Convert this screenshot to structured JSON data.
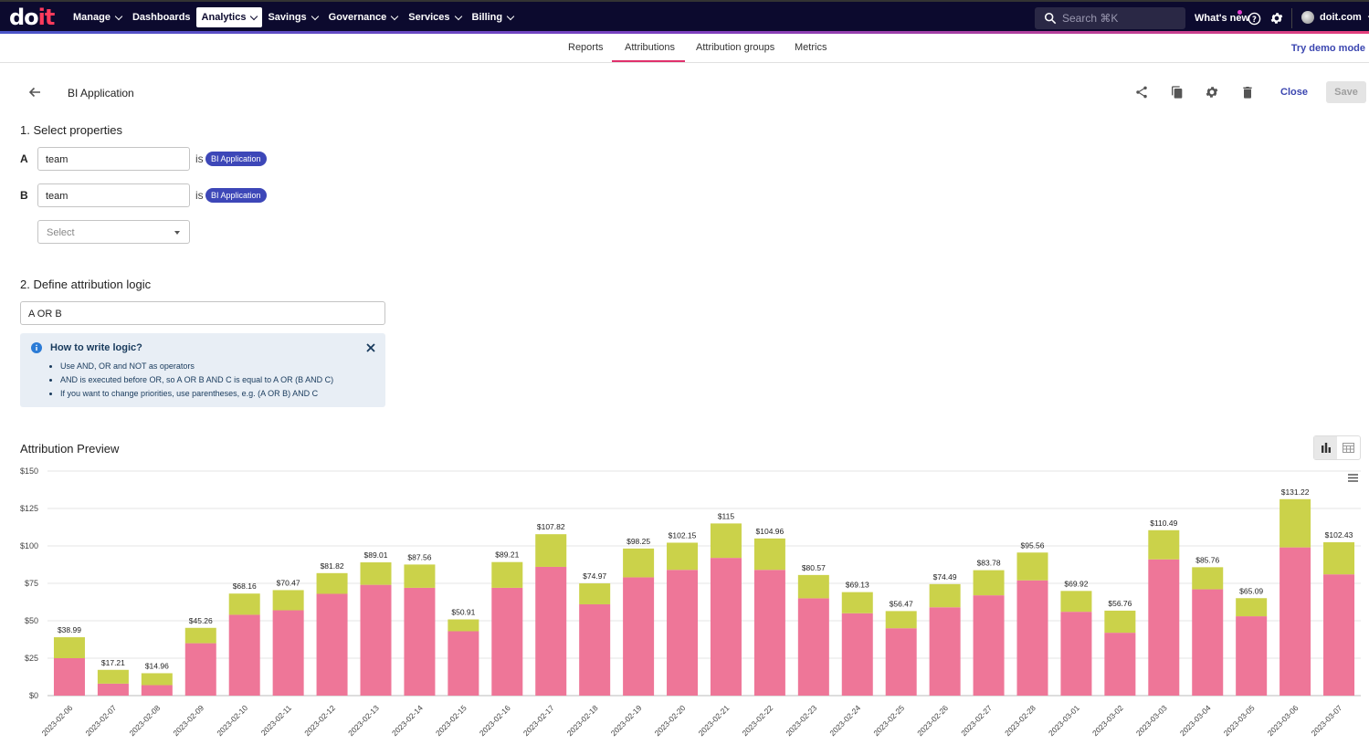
{
  "nav": {
    "logo_left": "do",
    "logo_right": "it",
    "items": [
      {
        "label": "Manage",
        "has_caret": true,
        "active": false
      },
      {
        "label": "Dashboards",
        "has_caret": false,
        "active": false
      },
      {
        "label": "Analytics",
        "has_caret": true,
        "active": true
      },
      {
        "label": "Savings",
        "has_caret": true,
        "active": false
      },
      {
        "label": "Governance",
        "has_caret": true,
        "active": false
      },
      {
        "label": "Services",
        "has_caret": true,
        "active": false
      },
      {
        "label": "Billing",
        "has_caret": true,
        "active": false
      }
    ],
    "search_placeholder": "Search ⌘K",
    "whats_new": "What's new",
    "account": "doit.com"
  },
  "subtabs": {
    "items": [
      "Reports",
      "Attributions",
      "Attribution groups",
      "Metrics"
    ],
    "active": "Attributions",
    "try_demo": "Try demo mode"
  },
  "header": {
    "title": "BI Application",
    "close_label": "Close",
    "save_label": "Save"
  },
  "section1": {
    "title": "1. Select properties",
    "rows": [
      {
        "letter": "A",
        "field": "team",
        "operator": "is",
        "chip": "BI Application"
      },
      {
        "letter": "B",
        "field": "team",
        "operator": "is",
        "chip": "BI Application"
      }
    ],
    "select_placeholder": "Select"
  },
  "section2": {
    "title": "2. Define attribution logic",
    "logic_value": "A OR B",
    "info": {
      "title": "How to write logic?",
      "items": [
        "Use AND, OR and NOT as operators",
        "AND is executed before OR, so A OR B AND C is equal to A OR (B AND C)",
        "If you want to change priorities, use parentheses, e.g. (A OR B) AND C"
      ]
    }
  },
  "preview": {
    "title": "Attribution Preview"
  },
  "colors": {
    "nav_bg": "#0c0a2e",
    "accent": "#e0306c",
    "link": "#3b46b0",
    "chip": "#3d47b8",
    "series_pink": "#ee7698",
    "series_olive": "#cbd24a"
  },
  "chart_data": {
    "type": "bar",
    "stacked": true,
    "categories": [
      "2023-02-06",
      "2023-02-07",
      "2023-02-08",
      "2023-02-09",
      "2023-02-10",
      "2023-02-11",
      "2023-02-12",
      "2023-02-13",
      "2023-02-14",
      "2023-02-15",
      "2023-02-16",
      "2023-02-17",
      "2023-02-18",
      "2023-02-19",
      "2023-02-20",
      "2023-02-21",
      "2023-02-22",
      "2023-02-23",
      "2023-02-24",
      "2023-02-25",
      "2023-02-26",
      "2023-02-27",
      "2023-02-28",
      "2023-03-01",
      "2023-03-02",
      "2023-03-03",
      "2023-03-04",
      "2023-03-05",
      "2023-03-06",
      "2023-03-07"
    ],
    "series": [
      {
        "color": "#ee7698",
        "values": [
          25,
          8,
          7,
          35,
          54,
          57,
          68,
          74,
          72,
          43,
          72,
          86,
          61,
          79,
          84,
          92,
          84,
          65,
          55,
          45,
          59,
          67,
          77,
          56,
          42,
          91,
          71,
          53,
          99,
          81
        ]
      },
      {
        "color": "#cbd24a",
        "values": [
          13.99,
          9.21,
          7.96,
          10.26,
          14.16,
          13.47,
          13.82,
          15.01,
          15.56,
          7.91,
          17.21,
          21.82,
          13.97,
          19.25,
          18.15,
          23,
          20.96,
          15.57,
          14.13,
          11.47,
          15.49,
          16.78,
          18.56,
          13.92,
          14.76,
          19.49,
          14.76,
          12.09,
          32.22,
          21.43
        ]
      }
    ],
    "totals": [
      "$38.99",
      "$17.21",
      "$14.96",
      "$45.26",
      "$68.16",
      "$70.47",
      "$81.82",
      "$89.01",
      "$87.56",
      "$50.91",
      "$89.21",
      "$107.82",
      "$74.97",
      "$98.25",
      "$102.15",
      "$115",
      "$104.96",
      "$80.57",
      "$69.13",
      "$56.47",
      "$74.49",
      "$83.78",
      "$95.56",
      "$69.92",
      "$56.76",
      "$110.49",
      "$85.76",
      "$65.09",
      "$131.22",
      "$102.43"
    ],
    "ytick_labels": [
      "$0",
      "$25",
      "$50",
      "$75",
      "$100",
      "$125",
      "$150"
    ],
    "yticks": [
      0,
      25,
      50,
      75,
      100,
      125,
      150
    ],
    "ylim": [
      0,
      150
    ],
    "grid": true,
    "legend": "none"
  }
}
